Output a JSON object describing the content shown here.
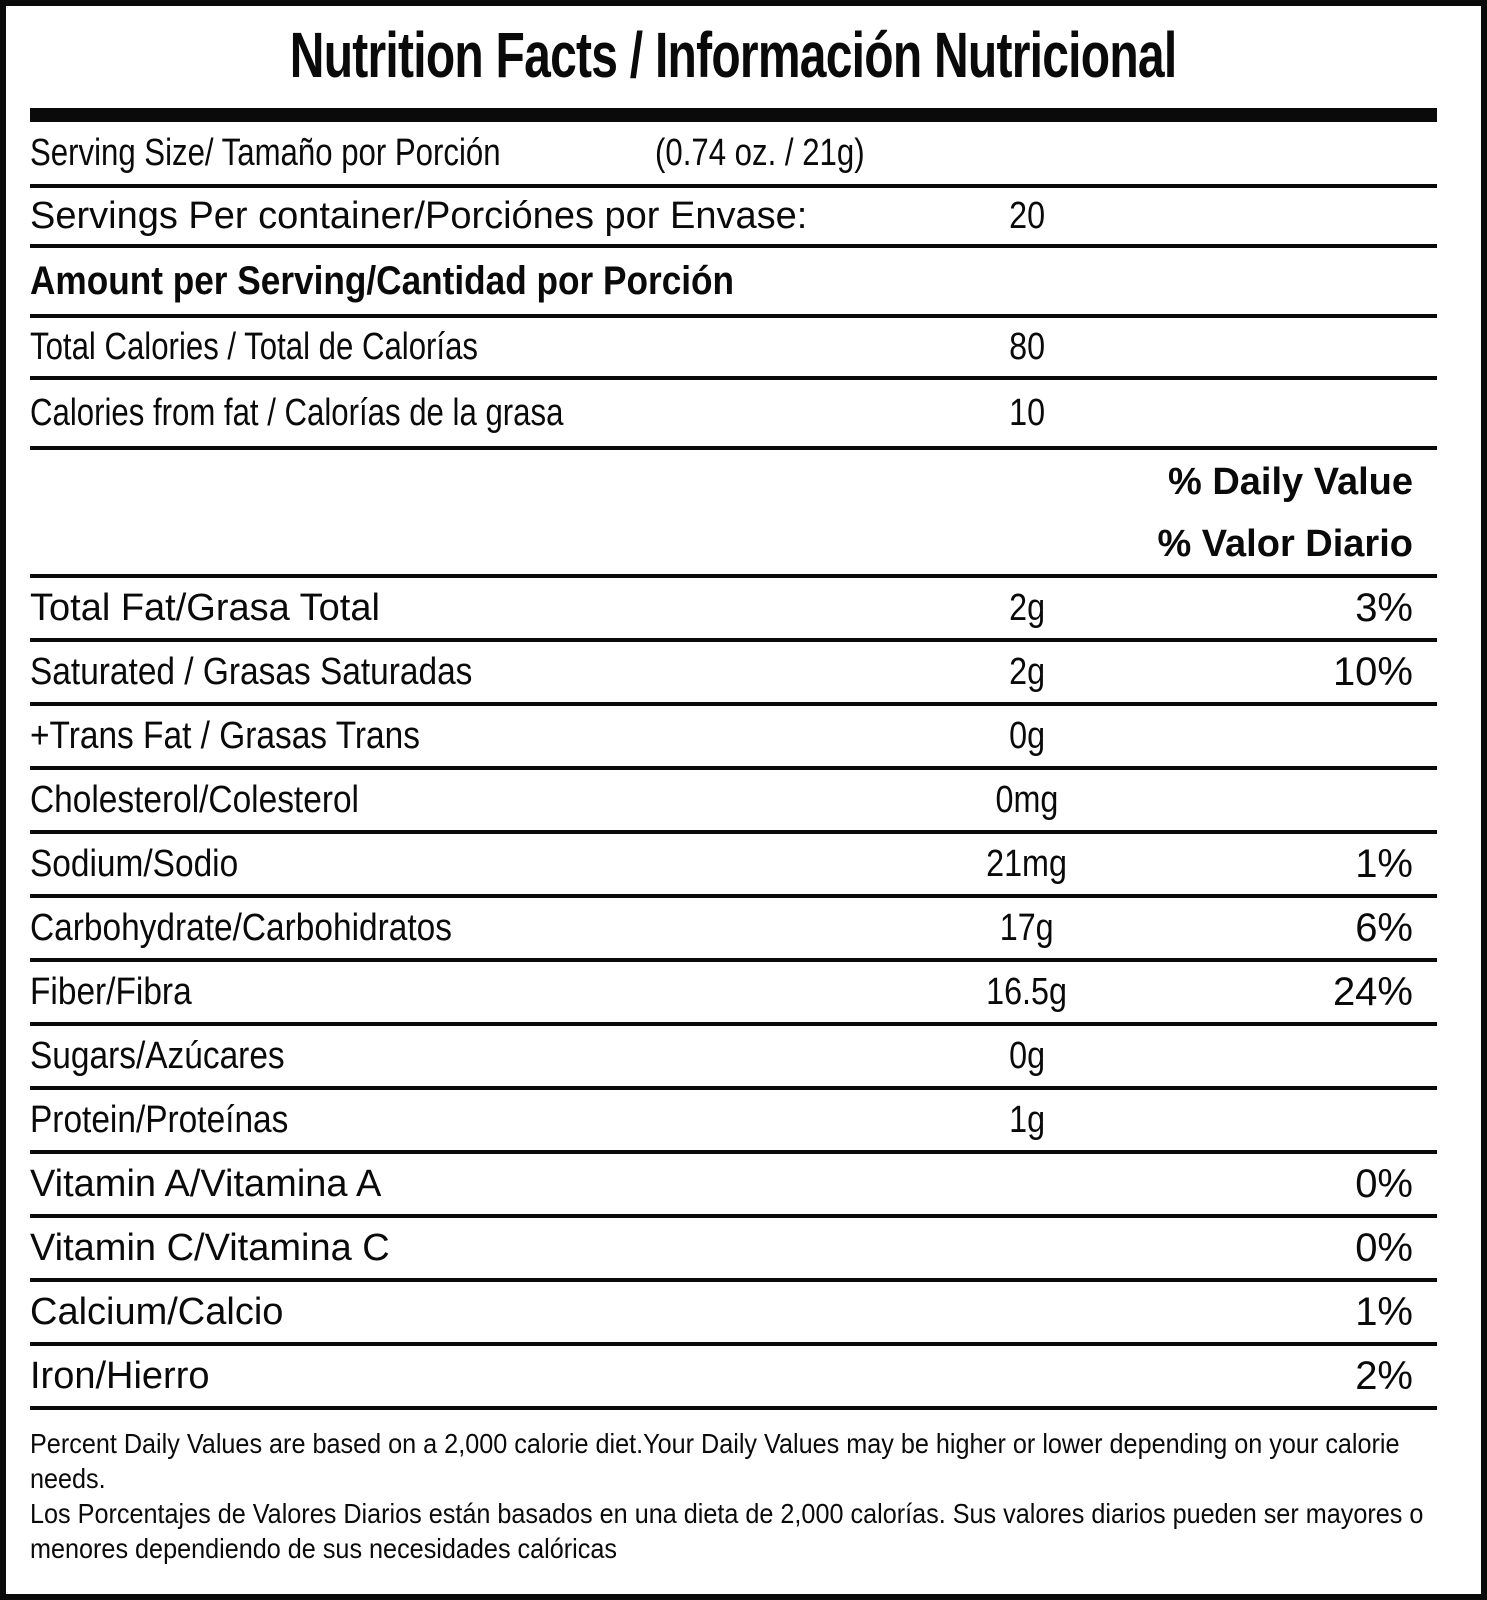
{
  "title": "Nutrition Facts / Información Nutricional",
  "serving_size": {
    "label": "Serving Size/ Tamaño por Porción",
    "value": "(0.74 oz. / 21g)"
  },
  "servings_per_container": {
    "label": "Servings Per container/Porciónes por Envase:",
    "value": "20"
  },
  "amount_per_serving_header": "Amount per Serving/Cantidad por Porción",
  "calories": [
    {
      "label": "Total Calories / Total de Calorías",
      "value": "80"
    },
    {
      "label": "Calories from fat / Calorías de la grasa",
      "value": "10"
    }
  ],
  "daily_value_header": {
    "line1": "% Daily Value",
    "line2": "% Valor Diario"
  },
  "nutrients": [
    {
      "label": "Total Fat/Grasa Total",
      "amount": "2g",
      "dv": "3%"
    },
    {
      "label": "Saturated / Grasas Saturadas",
      "amount": "2g",
      "dv": "10%"
    },
    {
      "label": "+Trans Fat / Grasas Trans",
      "amount": "0g",
      "dv": ""
    },
    {
      "label": "Cholesterol/Colesterol",
      "amount": "0mg",
      "dv": ""
    },
    {
      "label": "Sodium/Sodio",
      "amount": "21mg",
      "dv": "1%"
    },
    {
      "label": "Carbohydrate/Carbohidratos",
      "amount": "17g",
      "dv": "6%"
    },
    {
      "label": "Fiber/Fibra",
      "amount": "16.5g",
      "dv": "24%"
    },
    {
      "label": "Sugars/Azúcares",
      "amount": "0g",
      "dv": ""
    },
    {
      "label": "Protein/Proteínas",
      "amount": "1g",
      "dv": ""
    },
    {
      "label": "Vitamin A/Vitamina A",
      "amount": "",
      "dv": "0%"
    },
    {
      "label": "Vitamin C/Vitamina C",
      "amount": "",
      "dv": "0%"
    },
    {
      "label": "Calcium/Calcio",
      "amount": "",
      "dv": "1%"
    },
    {
      "label": "Iron/Hierro",
      "amount": "",
      "dv": "2%"
    }
  ],
  "footnotes": {
    "english": "Percent Daily Values are based on a 2,000 calorie diet.Your Daily Values may be higher or lower depending on your calorie needs.",
    "spanish": "Los Porcentajes de Valores Diarios están basados en una dieta de 2,000 calorías. Sus valores diarios pueden ser mayores o menores dependiendo de sus necesidades calóricas"
  },
  "colors": {
    "ink": "#0a0a0a",
    "background": "#ffffff"
  }
}
